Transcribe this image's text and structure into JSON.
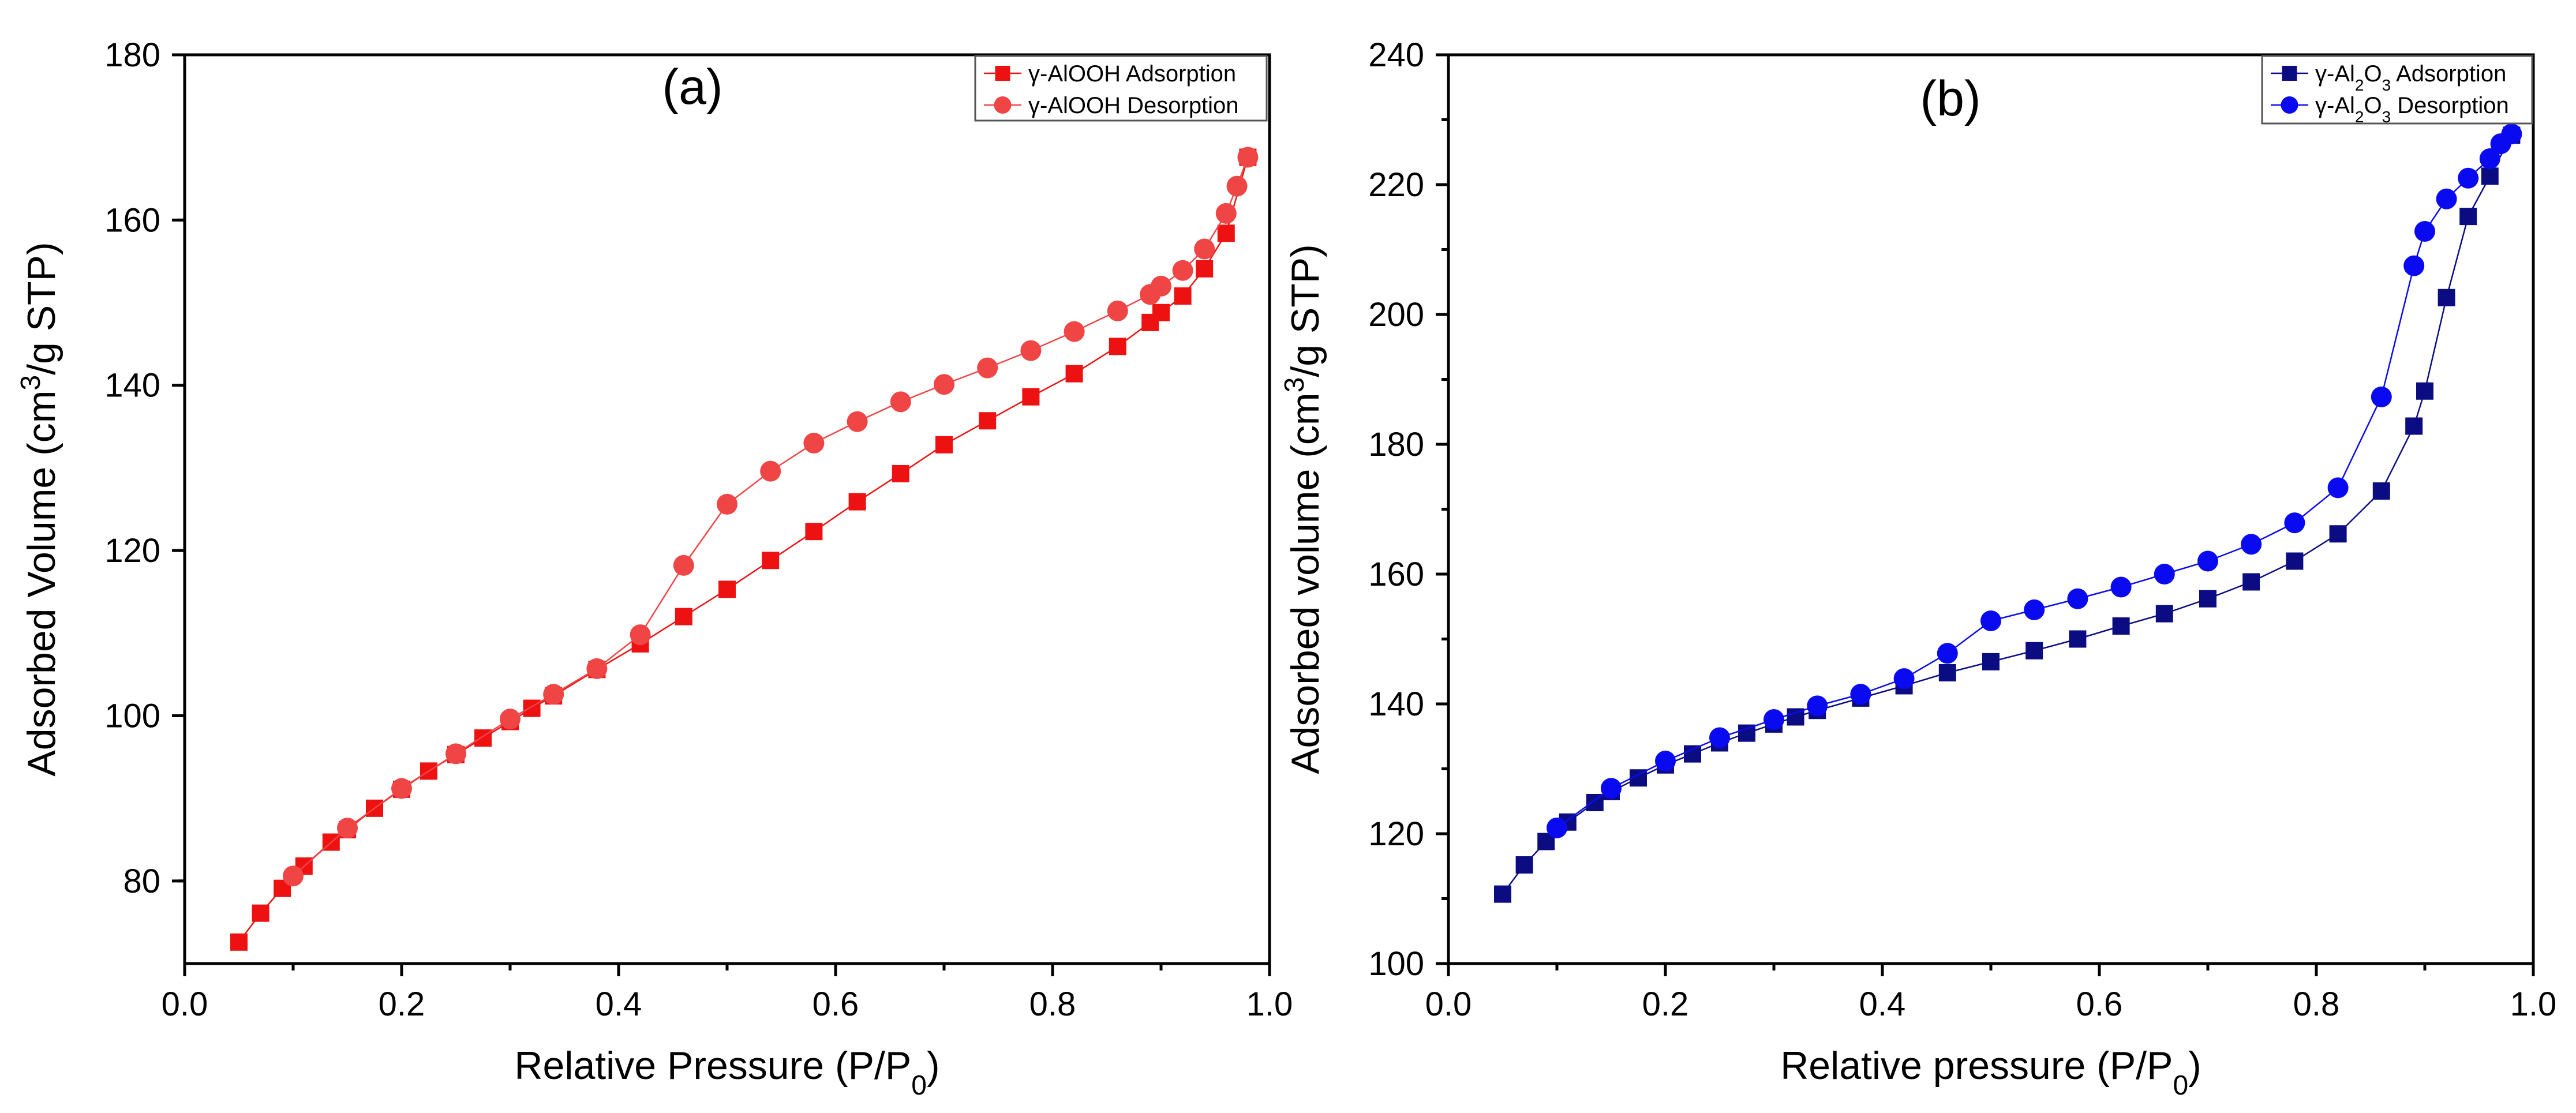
{
  "chart_data": [
    {
      "type": "line",
      "panel_label": "(a)",
      "title": "",
      "xlabel_main": "Relative Pressure (P/P",
      "xlabel_sub": "0",
      "xlabel_end": ")",
      "ylabel_main": "Adsorbed Volume (cm",
      "ylabel_sup": "3",
      "ylabel_end": "/g STP)",
      "xlim": [
        0.0,
        1.0
      ],
      "ylim": [
        70,
        180
      ],
      "xticks": [
        "0.0",
        "0.2",
        "0.4",
        "0.6",
        "0.8",
        "1.0"
      ],
      "xtick_values": [
        0.0,
        0.2,
        0.4,
        0.6,
        0.8,
        1.0
      ],
      "yticks": [
        "80",
        "100",
        "120",
        "140",
        "160",
        "180"
      ],
      "ytick_values": [
        80,
        100,
        120,
        140,
        160,
        180
      ],
      "legend_position": "top-right",
      "series": [
        {
          "name": "γ-AlOOH Adsorption",
          "legend_parts": [
            "γ-AlOOH Adsorption"
          ],
          "marker": "square",
          "color": "#ee1111",
          "x": [
            0.05,
            0.07,
            0.09,
            0.11,
            0.135,
            0.15,
            0.175,
            0.2,
            0.225,
            0.25,
            0.275,
            0.3,
            0.32,
            0.34,
            0.38,
            0.42,
            0.46,
            0.5,
            0.54,
            0.58,
            0.62,
            0.66,
            0.7,
            0.74,
            0.78,
            0.82,
            0.86,
            0.89,
            0.9,
            0.92,
            0.94,
            0.96,
            0.98
          ],
          "y": [
            72.6,
            76.1,
            79.1,
            81.8,
            84.7,
            86.2,
            88.8,
            91.1,
            93.3,
            95.3,
            97.3,
            99.3,
            100.9,
            102.4,
            105.6,
            108.7,
            112.0,
            115.3,
            118.8,
            122.3,
            125.9,
            129.3,
            132.8,
            135.7,
            138.6,
            141.4,
            144.7,
            147.6,
            148.8,
            150.8,
            154.1,
            158.4,
            167.6
          ]
        },
        {
          "name": "γ-AlOOH Desorption",
          "legend_parts": [
            "γ-AlOOH Desorption"
          ],
          "marker": "circle",
          "color": "#f04545",
          "x": [
            0.98,
            0.97,
            0.96,
            0.94,
            0.92,
            0.9,
            0.89,
            0.86,
            0.82,
            0.78,
            0.74,
            0.7,
            0.66,
            0.62,
            0.58,
            0.54,
            0.5,
            0.46,
            0.42,
            0.38,
            0.34,
            0.3,
            0.25,
            0.2,
            0.15,
            0.1
          ],
          "y": [
            167.6,
            164.1,
            160.8,
            156.5,
            153.9,
            152.0,
            151.0,
            149.0,
            146.5,
            144.2,
            142.1,
            140.1,
            138.0,
            135.6,
            133.0,
            129.6,
            125.6,
            118.2,
            109.8,
            105.7,
            102.6,
            99.6,
            95.4,
            91.2,
            86.4,
            80.6
          ]
        }
      ]
    },
    {
      "type": "line",
      "panel_label": "(b)",
      "title": "",
      "xlabel_main": "Relative pressure (P/P",
      "xlabel_sub": "0",
      "xlabel_end": ")",
      "ylabel_main": "Adsorbed volume (cm",
      "ylabel_sup": "3",
      "ylabel_end": "/g STP)",
      "xlim": [
        0.0,
        1.0
      ],
      "ylim": [
        100,
        240
      ],
      "xticks": [
        "0.0",
        "0.2",
        "0.4",
        "0.6",
        "0.8",
        "1.0"
      ],
      "xtick_values": [
        0.0,
        0.2,
        0.4,
        0.6,
        0.8,
        1.0
      ],
      "yticks": [
        "100",
        "120",
        "140",
        "160",
        "180",
        "200",
        "220",
        "240"
      ],
      "ytick_values": [
        100,
        120,
        140,
        160,
        180,
        200,
        220,
        240
      ],
      "legend_position": "top-right",
      "series": [
        {
          "name": "γ-Al2O3 Adsorption",
          "legend_parts": [
            "γ-Al",
            "2",
            "O",
            "3",
            " Adsorption"
          ],
          "marker": "square",
          "color": "#0c0c82",
          "x": [
            0.05,
            0.07,
            0.09,
            0.11,
            0.135,
            0.15,
            0.175,
            0.2,
            0.225,
            0.25,
            0.275,
            0.3,
            0.32,
            0.34,
            0.38,
            0.42,
            0.46,
            0.5,
            0.54,
            0.58,
            0.62,
            0.66,
            0.7,
            0.74,
            0.78,
            0.82,
            0.86,
            0.89,
            0.9,
            0.92,
            0.94,
            0.96,
            0.98
          ],
          "y": [
            110.7,
            115.2,
            118.8,
            121.8,
            124.8,
            126.5,
            128.6,
            130.6,
            132.3,
            134.0,
            135.5,
            136.9,
            138.0,
            139.0,
            140.9,
            142.8,
            144.8,
            146.5,
            148.2,
            150.0,
            152.0,
            153.9,
            156.2,
            158.8,
            162.0,
            166.2,
            172.8,
            182.8,
            188.2,
            202.6,
            215.1,
            221.3,
            227.6
          ]
        },
        {
          "name": "γ-Al2O3 Desorption",
          "legend_parts": [
            "γ-Al",
            "2",
            "O",
            "3",
            " Desorption"
          ],
          "marker": "circle",
          "color": "#0a0af0",
          "x": [
            0.98,
            0.97,
            0.96,
            0.94,
            0.92,
            0.9,
            0.89,
            0.86,
            0.82,
            0.78,
            0.74,
            0.7,
            0.66,
            0.62,
            0.58,
            0.54,
            0.5,
            0.46,
            0.42,
            0.38,
            0.34,
            0.3,
            0.25,
            0.2,
            0.15,
            0.1
          ],
          "y": [
            227.8,
            226.3,
            224.0,
            221.0,
            217.8,
            212.8,
            207.5,
            187.3,
            173.3,
            167.9,
            164.6,
            162.0,
            160.0,
            158.0,
            156.2,
            154.5,
            152.8,
            147.8,
            143.9,
            141.5,
            139.7,
            137.6,
            134.8,
            131.2,
            127.0,
            120.9
          ]
        }
      ]
    }
  ]
}
